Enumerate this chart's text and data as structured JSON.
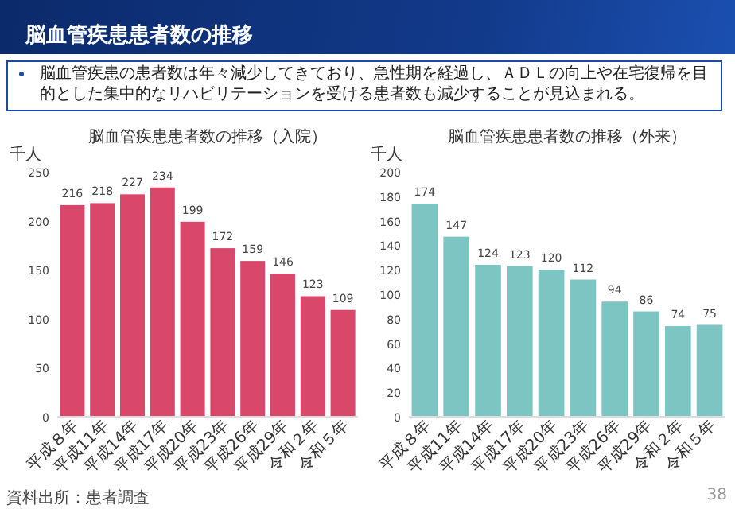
{
  "chart_data": [
    {
      "type": "other",
      "title": "脳血管疾患患者数の推移",
      "annotations": [
        "脳血管疾患の患者数は年々減少してきており、急性期を経過し、ＡＤＬの向上や在宅復帰を目的とした集中的なリハビリテーションを受ける患者数も減少することが見込まれる。"
      ]
    },
    {
      "type": "bar",
      "title": "脳血管疾患患者数の推移（入院）",
      "ylabel": "千人",
      "categories": [
        "平成８年",
        "平成11年",
        "平成14年",
        "平成17年",
        "平成20年",
        "平成23年",
        "平成26年",
        "平成29年",
        "令和２年",
        "令和５年"
      ],
      "values": [
        216,
        218,
        227,
        234,
        199,
        172,
        159,
        146,
        123,
        109
      ],
      "color": "#d9486b",
      "ylim": [
        0,
        250
      ],
      "yticks": [
        0,
        50,
        100,
        150,
        200,
        250
      ],
      "data_labels": true,
      "annotations": [
        "資料出所：患者調査"
      ]
    },
    {
      "type": "bar",
      "title": "脳血管疾患患者数の推移（外来）",
      "ylabel": "千人",
      "categories": [
        "平成８年",
        "平成11年",
        "平成14年",
        "平成17年",
        "平成20年",
        "平成23年",
        "平成26年",
        "平成29年",
        "令和２年",
        "令和５年"
      ],
      "values": [
        174,
        147,
        124,
        123,
        120,
        112,
        94,
        86,
        74,
        75
      ],
      "color": "#7cc5c3",
      "ylim": [
        0,
        200
      ],
      "yticks": [
        0,
        20,
        40,
        60,
        80,
        100,
        120,
        140,
        160,
        180,
        200
      ],
      "data_labels": true,
      "annotations": [
        "38"
      ]
    }
  ]
}
